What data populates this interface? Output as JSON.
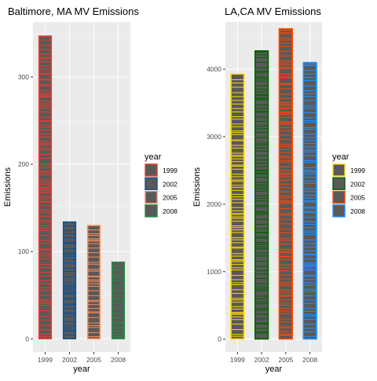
{
  "chart_data": [
    {
      "type": "bar",
      "title": "Baltimore, MA MV Emissions",
      "xlabel": "year",
      "ylabel": "Emissions",
      "categories": [
        "1999",
        "2002",
        "2005",
        "2008"
      ],
      "values": [
        347,
        134,
        130,
        88
      ],
      "ylim": [
        -15,
        363
      ],
      "yticks": [
        0,
        100,
        200,
        300
      ],
      "grid": true,
      "legend": {
        "title": "year",
        "position": "right",
        "entries": [
          "1999",
          "2002",
          "2005",
          "2008"
        ],
        "colors": [
          "#EF3B2C",
          "#08519C",
          "#FC8D59",
          "#238B45"
        ]
      },
      "segment_fill": "#595959"
    },
    {
      "type": "bar",
      "title": "LA,CA MV Emissions",
      "xlabel": "year",
      "ylabel": "Emissions",
      "categories": [
        "1999",
        "2002",
        "2005",
        "2008"
      ],
      "values": [
        3931,
        4274,
        4601,
        4101
      ],
      "ylim": [
        -190,
        4700
      ],
      "yticks": [
        0,
        1000,
        2000,
        3000,
        4000
      ],
      "grid": true,
      "legend": {
        "title": "year",
        "position": "right",
        "entries": [
          "1999",
          "2002",
          "2005",
          "2008"
        ],
        "colors": [
          "#FFD700",
          "#006400",
          "#FF4500",
          "#1E90FF"
        ]
      },
      "segment_fill": "#595959"
    }
  ]
}
